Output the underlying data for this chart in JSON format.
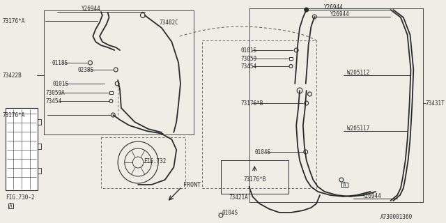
{
  "bg_color": "#f0ede6",
  "line_color": "#2a2a2a",
  "dashed_color": "#555555",
  "part_number": "A730001360",
  "labels": {
    "Y26944_top_left": "Y26944",
    "73176A_top": "73176*A",
    "73482C": "73482C",
    "73422B": "73422B",
    "0118S": "0118S",
    "0238S": "0238S",
    "0101S_left": "0101S",
    "73059A": "73059A",
    "73454_left": "73454",
    "73176A_bot": "73176*A",
    "FIG732": "FIG.732",
    "FIG730": "FIG.730-2",
    "FRONT": "FRONT",
    "Y26944_right1": "Y26944",
    "Y26944_right2": "Y26944",
    "0101S_right": "0101S",
    "73059_right": "73059",
    "73454_right": "73454",
    "73176B_right": "73176*B",
    "W205112": "W205112",
    "W205117": "W205117",
    "73431T": "73431T",
    "0104S_right": "0104S",
    "73176B_bot": "73176*B",
    "73421A": "73421A",
    "0104S_bot": "0104S",
    "Y26944_bot": "Y26944",
    "A_left": "A",
    "A_right": "A"
  }
}
